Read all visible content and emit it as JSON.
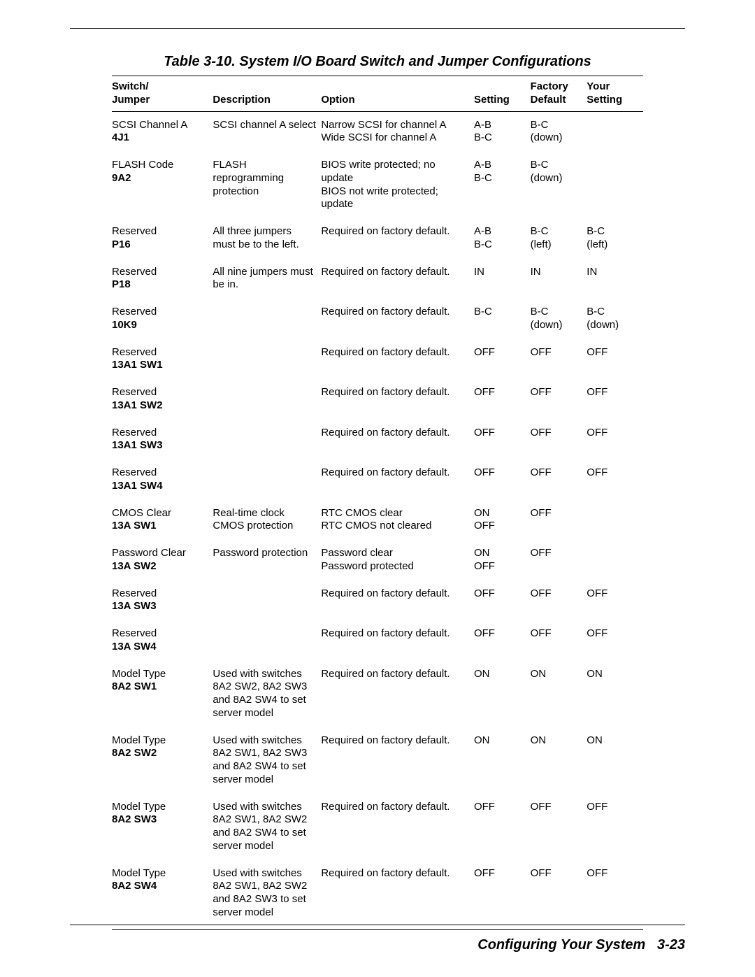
{
  "title": "Table 3-10.  System I/O Board Switch and Jumper Configurations",
  "columns": {
    "switch_line1": "Switch/",
    "switch_line2": "Jumper",
    "description": "Description",
    "option": "Option",
    "setting": "Setting",
    "factory_line1": "Factory",
    "factory_line2": "Default",
    "your_line1": "Your",
    "your_line2": "Setting"
  },
  "rows": [
    {
      "name": "SCSI Channel A",
      "id": "4J1",
      "description": "SCSI channel A select",
      "option": "Narrow SCSI for channel A\nWide SCSI for channel A",
      "setting": "A-B\nB-C",
      "factory": "B-C\n(down)",
      "your": ""
    },
    {
      "name": "FLASH Code",
      "id": "9A2",
      "description": "FLASH reprogramming protection",
      "option": "BIOS write protected; no update\nBIOS not write protected; update",
      "setting": "A-B\nB-C",
      "factory": "B-C\n(down)",
      "your": ""
    },
    {
      "name": "Reserved",
      "id": "P16",
      "description": "All three jumpers must be to the left.",
      "option": "Required on factory default.",
      "setting": "A-B\nB-C",
      "factory": "B-C\n(left)",
      "your": "B-C\n(left)"
    },
    {
      "name": "Reserved",
      "id": "P18",
      "description": "All nine jumpers must be in.",
      "option": "Required on factory default.",
      "setting": "IN",
      "factory": "IN",
      "your": "IN"
    },
    {
      "name": "Reserved",
      "id": "10K9",
      "description": "",
      "option": "Required on factory default.",
      "setting": "B-C",
      "factory": "B-C\n(down)",
      "your": "B-C\n(down)"
    },
    {
      "name": "Reserved",
      "id": "13A1 SW1",
      "description": "",
      "option": "Required on factory default.",
      "setting": "OFF",
      "factory": "OFF",
      "your": "OFF"
    },
    {
      "name": "Reserved",
      "id": "13A1 SW2",
      "description": "",
      "option": "Required on factory default.",
      "setting": "OFF",
      "factory": "OFF",
      "your": "OFF"
    },
    {
      "name": "Reserved",
      "id": "13A1 SW3",
      "description": "",
      "option": "Required on factory default.",
      "setting": "OFF",
      "factory": "OFF",
      "your": "OFF"
    },
    {
      "name": "Reserved",
      "id": "13A1 SW4",
      "description": "",
      "option": "Required on factory default.",
      "setting": "OFF",
      "factory": "OFF",
      "your": "OFF"
    },
    {
      "name": "CMOS Clear",
      "id": "13A SW1",
      "description": "Real-time clock CMOS protection",
      "option": "RTC CMOS clear\nRTC CMOS not cleared",
      "setting": "ON\nOFF",
      "factory": "OFF",
      "your": ""
    },
    {
      "name": "Password Clear",
      "id": "13A SW2",
      "description": "Password protection",
      "option": "Password clear\nPassword protected",
      "setting": "ON\nOFF",
      "factory": "OFF",
      "your": ""
    },
    {
      "name": "Reserved",
      "id": "13A SW3",
      "description": "",
      "option": "Required on factory default.",
      "setting": "OFF",
      "factory": "OFF",
      "your": "OFF"
    },
    {
      "name": "Reserved",
      "id": "13A SW4",
      "description": "",
      "option": "Required on factory default.",
      "setting": "OFF",
      "factory": "OFF",
      "your": "OFF"
    },
    {
      "name": "Model Type",
      "id": "8A2 SW1",
      "description": "Used with switches 8A2 SW2, 8A2 SW3 and 8A2 SW4 to set server model",
      "option": "Required on factory default.",
      "setting": "ON",
      "factory": "ON",
      "your": "ON"
    },
    {
      "name": "Model Type",
      "id": "8A2 SW2",
      "description": "Used with switches 8A2 SW1, 8A2 SW3 and 8A2 SW4 to set server model",
      "option": "Required on factory default.",
      "setting": "ON",
      "factory": "ON",
      "your": "ON"
    },
    {
      "name": "Model Type",
      "id": "8A2 SW3",
      "description": "Used with switches 8A2 SW1, 8A2 SW2 and 8A2 SW4 to set server model",
      "option": "Required on factory default.",
      "setting": "OFF",
      "factory": "OFF",
      "your": "OFF"
    },
    {
      "name": "Model Type",
      "id": "8A2 SW4",
      "description": "Used with switches 8A2 SW1, 8A2 SW2 and 8A2 SW3 to set server model",
      "option": "Required on factory default.",
      "setting": "OFF",
      "factory": "OFF",
      "your": "OFF"
    }
  ],
  "footer": {
    "section": "Configuring Your System",
    "page": "3-23"
  }
}
